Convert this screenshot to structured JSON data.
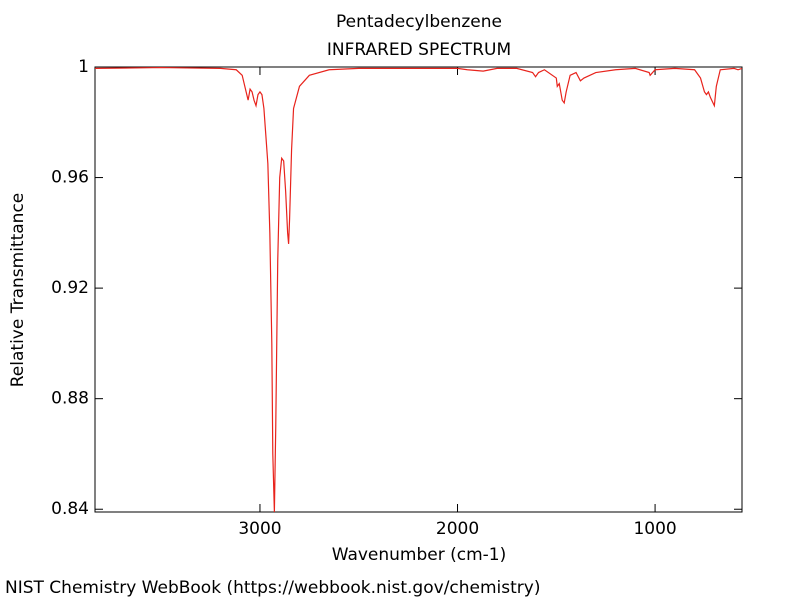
{
  "chart_data": {
    "type": "line",
    "title": "Pentadecylbenzene",
    "subtitle": "INFRARED SPECTRUM",
    "x_label": "Wavenumber (cm-1)",
    "y_label": "Relative Transmittance",
    "source": "NIST Chemistry WebBook (https://webbook.nist.gov/chemistry)",
    "xlim": [
      3835,
      560
    ],
    "ylim": [
      0.839,
      1.0
    ],
    "xticks": [
      3000,
      2000,
      1000
    ],
    "yticks": [
      0.84,
      0.88,
      0.92,
      0.96,
      1
    ],
    "series": [
      {
        "color": "#e8231c",
        "x": [
          3835,
          3500,
          3200,
          3120,
          3090,
          3070,
          3060,
          3050,
          3040,
          3030,
          3020,
          3010,
          3000,
          2990,
          2980,
          2970,
          2960,
          2950,
          2940,
          2935,
          2927,
          2920,
          2910,
          2900,
          2890,
          2880,
          2870,
          2860,
          2855,
          2850,
          2840,
          2830,
          2800,
          2750,
          2650,
          2500,
          2000,
          1950,
          1870,
          1800,
          1700,
          1620,
          1605,
          1590,
          1560,
          1500,
          1495,
          1485,
          1470,
          1460,
          1450,
          1430,
          1400,
          1378,
          1360,
          1300,
          1200,
          1100,
          1030,
          1025,
          1000,
          900,
          800,
          770,
          750,
          740,
          730,
          720,
          700,
          690,
          670,
          600,
          580,
          560
        ],
        "values": [
          0.9995,
          0.9998,
          0.9995,
          0.999,
          0.997,
          0.991,
          0.988,
          0.992,
          0.991,
          0.988,
          0.986,
          0.99,
          0.991,
          0.99,
          0.985,
          0.975,
          0.965,
          0.94,
          0.9,
          0.86,
          0.839,
          0.87,
          0.93,
          0.96,
          0.967,
          0.966,
          0.955,
          0.94,
          0.936,
          0.945,
          0.97,
          0.985,
          0.993,
          0.997,
          0.999,
          0.9995,
          0.9995,
          0.999,
          0.9985,
          0.9995,
          0.9995,
          0.998,
          0.9965,
          0.998,
          0.999,
          0.996,
          0.993,
          0.994,
          0.988,
          0.987,
          0.991,
          0.997,
          0.998,
          0.995,
          0.996,
          0.998,
          0.999,
          0.9995,
          0.998,
          0.997,
          0.999,
          0.9995,
          0.999,
          0.996,
          0.991,
          0.99,
          0.991,
          0.989,
          0.986,
          0.993,
          0.999,
          0.9995,
          0.999,
          0.9995
        ]
      }
    ]
  }
}
